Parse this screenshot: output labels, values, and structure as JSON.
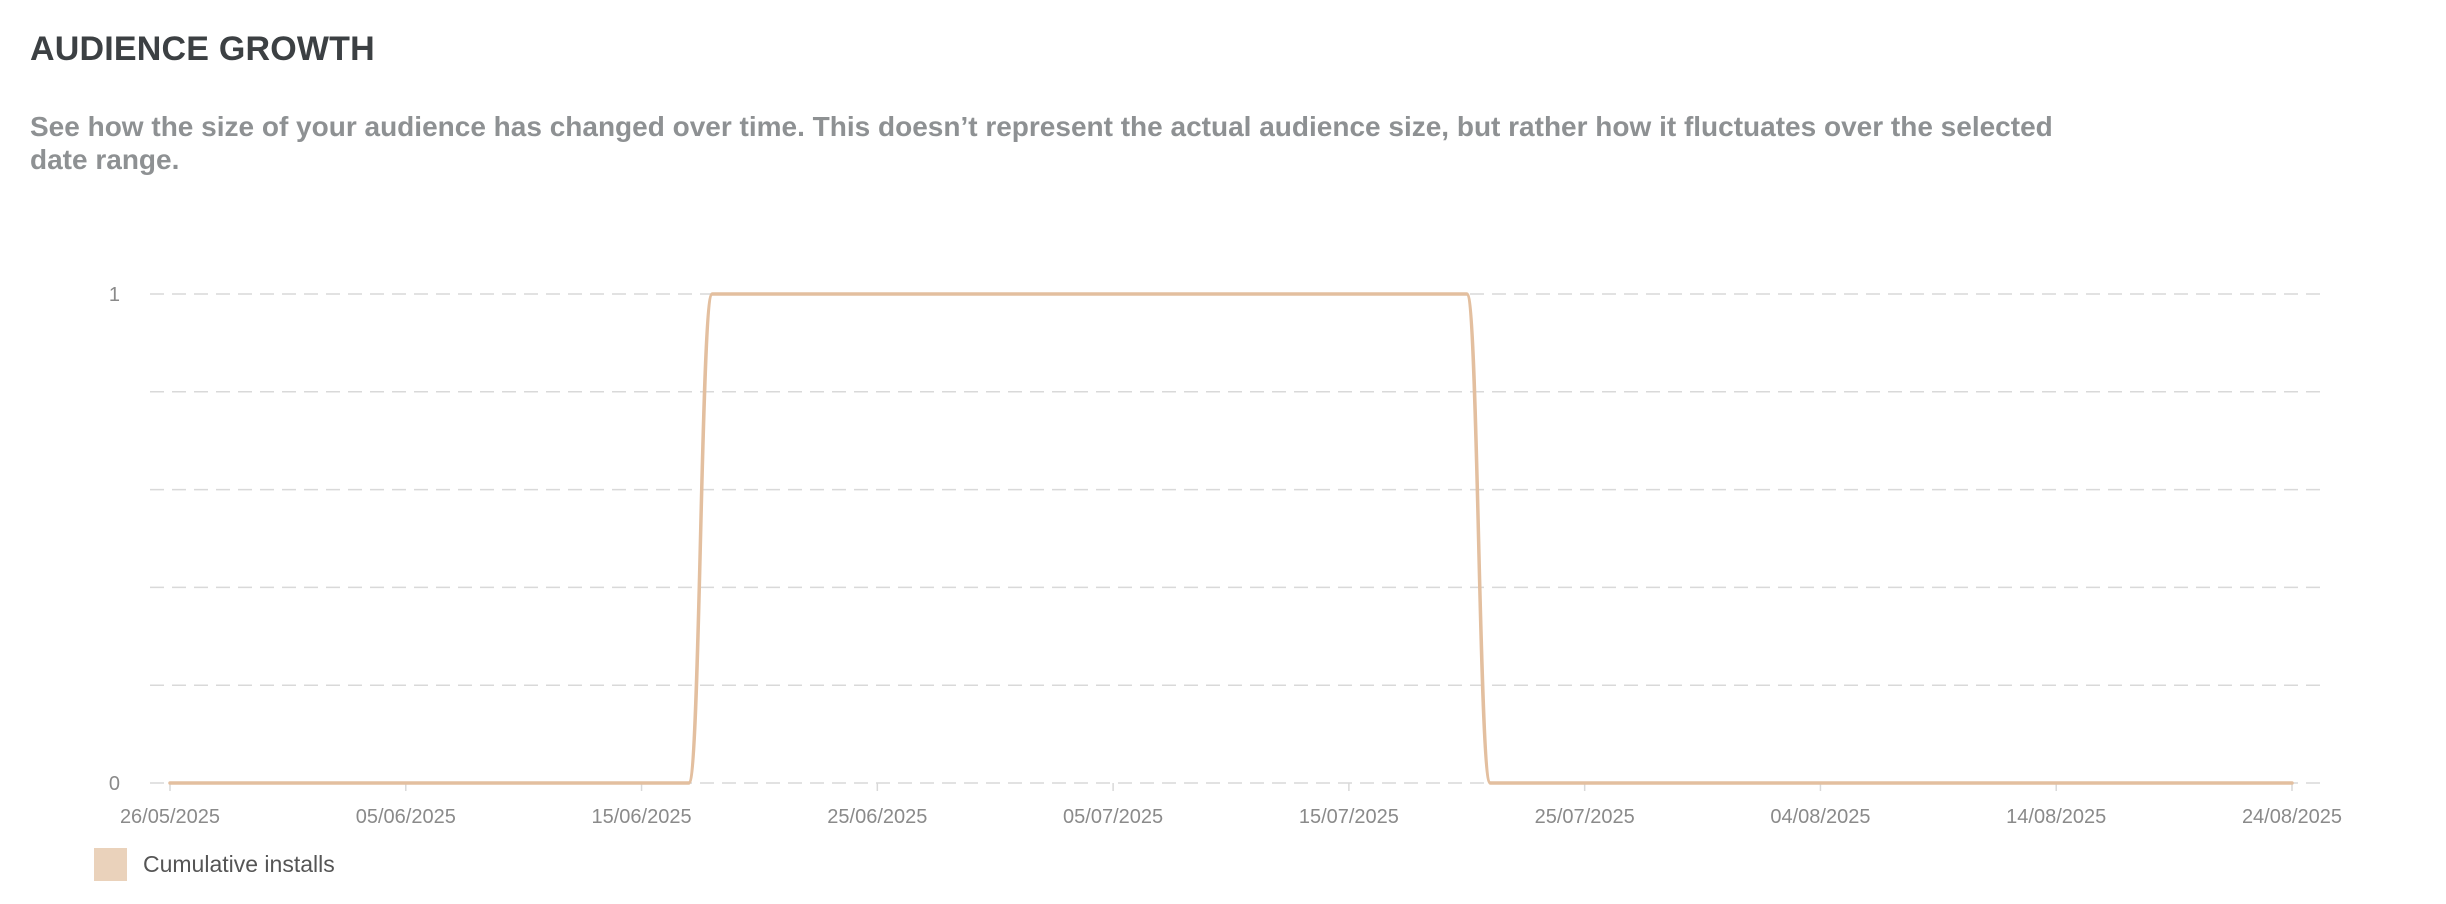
{
  "header": {
    "title": "AUDIENCE GROWTH",
    "subtitle": "See how the size of your audience has changed over time. This doesn’t represent the actual audience size, but rather how it fluctuates over the selected date range."
  },
  "colors": {
    "series": "#e3bf9f",
    "legend_swatch": "#ead2bb",
    "grid": "#d9d9d9",
    "axis_text": "#8a8a8a"
  },
  "chart_data": {
    "type": "line",
    "title": "AUDIENCE GROWTH",
    "xlabel": "",
    "ylabel": "",
    "x_ticks": [
      "26/05/2025",
      "05/06/2025",
      "15/06/2025",
      "25/06/2025",
      "05/07/2025",
      "15/07/2025",
      "25/07/2025",
      "04/08/2025",
      "14/08/2025",
      "24/08/2025"
    ],
    "y_ticks": [
      "0",
      "1"
    ],
    "xlim": [
      "2025-05-26",
      "2025-08-24"
    ],
    "ylim": [
      0,
      1
    ],
    "grid": true,
    "legend": "bottom-left",
    "series": [
      {
        "name": "Cumulative installs",
        "points": [
          {
            "x": "2025-05-26",
            "y": 0
          },
          {
            "x": "2025-06-17",
            "y": 0
          },
          {
            "x": "2025-06-18",
            "y": 1
          },
          {
            "x": "2025-07-20",
            "y": 1
          },
          {
            "x": "2025-07-21",
            "y": 0
          },
          {
            "x": "2025-08-24",
            "y": 0
          }
        ]
      }
    ]
  }
}
